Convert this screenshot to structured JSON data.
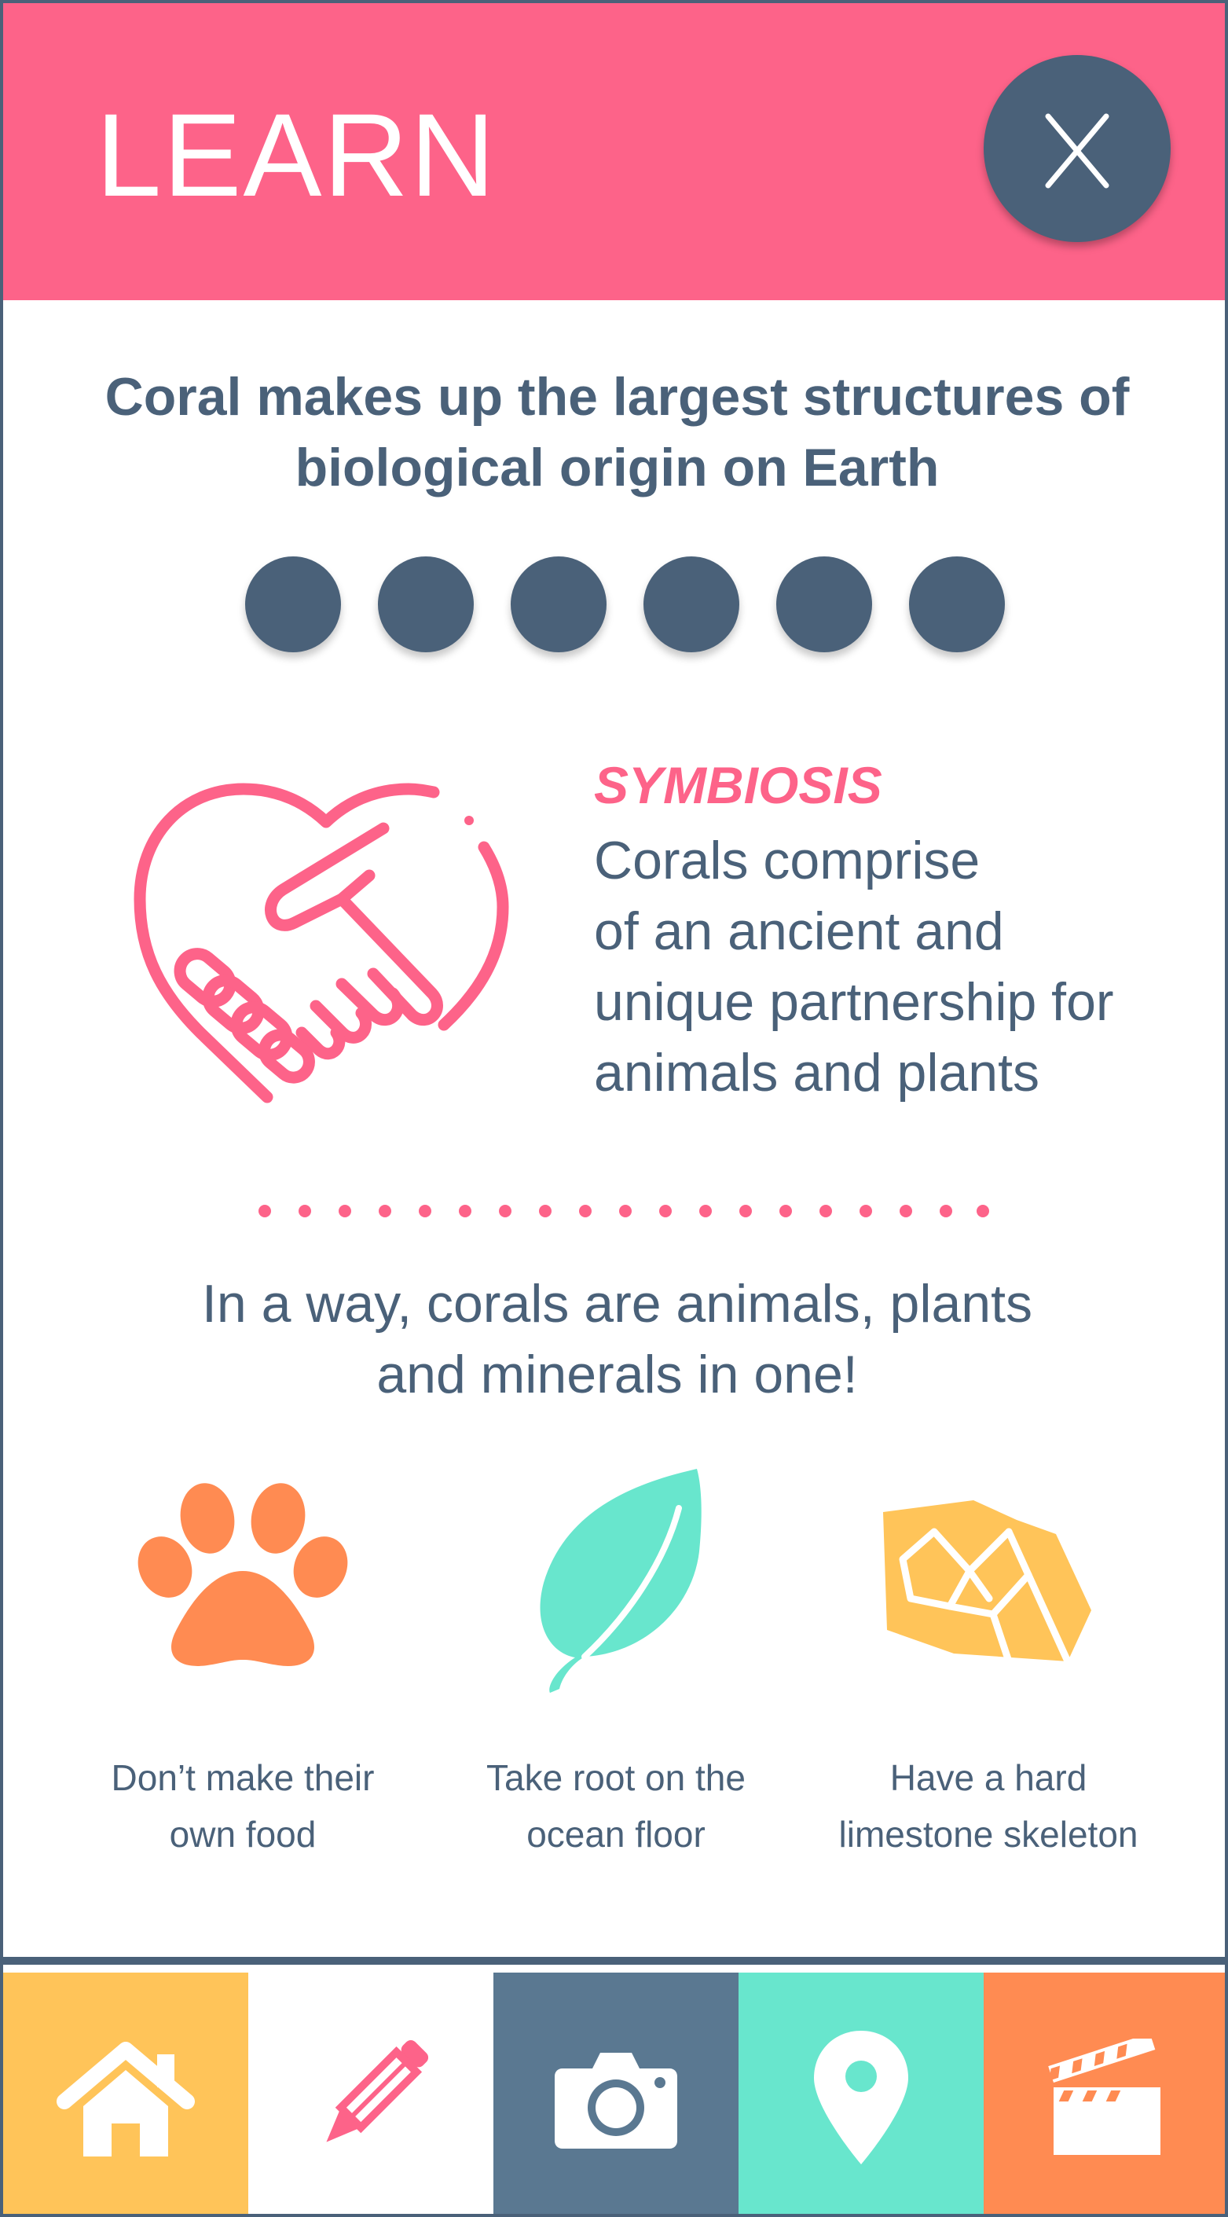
{
  "header": {
    "title": "LEARN",
    "close_label": "X",
    "background_color": "#fd6389",
    "close_color": "#4a6179"
  },
  "headline": {
    "line1": "Coral makes up the largest structures of",
    "line2": "biological origin on Earth"
  },
  "pagination": {
    "dot_count": 6,
    "dot_color": "#4a6179"
  },
  "symbiosis": {
    "icon": "heart-handshake-icon",
    "title": "SYMBIOSIS",
    "body_lines": [
      "Corals comprise",
      "of an ancient and",
      "unique partnership for",
      "animals and plants"
    ]
  },
  "tagline": {
    "line1": "In a way, corals are animals, plants",
    "line2": "and minerals in one!"
  },
  "features": [
    {
      "icon": "paw-print-icon",
      "color": "#ff8b52",
      "lines": [
        "Don’t make their",
        "own food"
      ]
    },
    {
      "icon": "leaf-icon",
      "color": "#68e6cd",
      "lines": [
        "Take root on the",
        "ocean floor"
      ]
    },
    {
      "icon": "rock-icon",
      "color": "#ffc459",
      "lines": [
        "Have a hard",
        "limestone skeleton"
      ]
    }
  ],
  "nav": {
    "tabs": [
      {
        "icon": "home-icon",
        "color": "#ffc459"
      },
      {
        "icon": "pencil-icon",
        "color": "#ffffff",
        "active": true
      },
      {
        "icon": "camera-icon",
        "color": "#5a7891"
      },
      {
        "icon": "location-pin-icon",
        "color": "#68e6cd"
      },
      {
        "icon": "clapperboard-icon",
        "color": "#ff8b52"
      }
    ]
  },
  "colors": {
    "text": "#4a6179",
    "accent_pink": "#fd6389",
    "border": "#4a6179"
  }
}
